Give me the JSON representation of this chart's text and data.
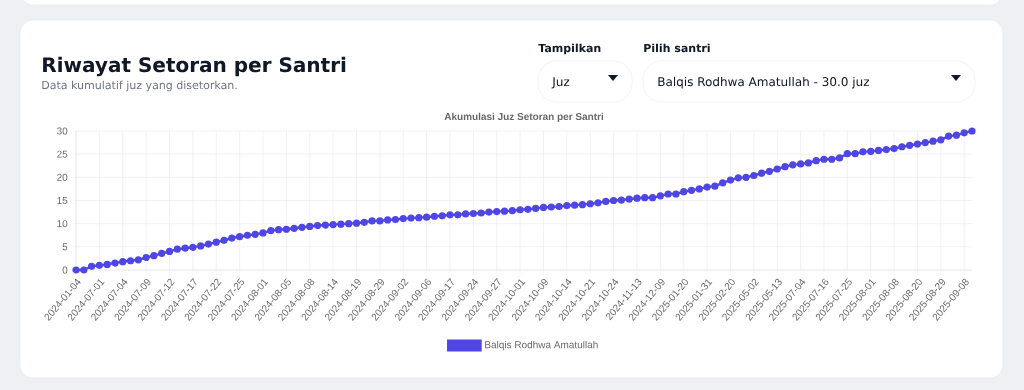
{
  "chart_data": {
    "type": "line",
    "title": "Riwayat Setoran per Santri",
    "subtitle": "Data kumulatif juz yang disetorkan.",
    "annotations": [
      "Akumulasi Juz Setoran per Santri",
      "Tampilkan",
      "Juz",
      "Pilih santri",
      "Balqis Rodhwa Amatullah - 30.0 juz"
    ],
    "categories": [
      "2024-01-04",
      null,
      null,
      "2024-07-01",
      null,
      null,
      "2024-07-04",
      null,
      null,
      "2024-07-09",
      null,
      null,
      "2024-07-12",
      null,
      null,
      "2024-07-17",
      null,
      null,
      "2024-07-22",
      null,
      null,
      "2024-07-25",
      null,
      null,
      "2024-08-01",
      null,
      null,
      "2024-08-05",
      null,
      null,
      "2024-08-08",
      null,
      null,
      "2024-08-14",
      null,
      null,
      "2024-08-19",
      null,
      null,
      "2024-08-29",
      null,
      null,
      "2024-09-02",
      null,
      null,
      "2024-09-06",
      null,
      null,
      "2024-09-17",
      null,
      null,
      "2024-09-24",
      null,
      null,
      "2024-09-27",
      null,
      null,
      "2024-10-01",
      null,
      null,
      "2024-10-09",
      null,
      null,
      "2024-10-14",
      null,
      null,
      "2024-10-21",
      null,
      null,
      "2024-10-24",
      null,
      null,
      "2024-11-13",
      null,
      null,
      "2024-12-09",
      null,
      null,
      "2025-01-20",
      null,
      null,
      "2025-01-31",
      null,
      null,
      "2025-02-20",
      null,
      null,
      "2025-05-02",
      null,
      null,
      "2025-05-13",
      null,
      null,
      "2025-07-04",
      null,
      null,
      "2025-07-16",
      null,
      null,
      "2025-07-25",
      null,
      null,
      "2025-08-01",
      null,
      null,
      "2025-08-08",
      null,
      null,
      "2025-08-20",
      null,
      null,
      "2025-08-29",
      null,
      null,
      "2025-09-08",
      null
    ],
    "series": [
      {
        "name": "Balqis Rodhwa Amatullah",
        "color": "#4f46e5",
        "values": [
          0,
          0,
          0.8,
          1.0,
          1.2,
          1.5,
          1.8,
          2.0,
          2.2,
          2.7,
          3.1,
          3.6,
          4.0,
          4.5,
          4.7,
          4.9,
          5.2,
          5.6,
          6.0,
          6.4,
          6.9,
          7.2,
          7.5,
          7.7,
          8.0,
          8.5,
          8.7,
          8.8,
          9.0,
          9.2,
          9.4,
          9.6,
          9.7,
          9.8,
          9.9,
          10.0,
          10.1,
          10.3,
          10.6,
          10.6,
          10.8,
          10.9,
          11.1,
          11.2,
          11.3,
          11.4,
          11.6,
          11.7,
          11.9,
          11.9,
          12.1,
          12.2,
          12.3,
          12.5,
          12.6,
          12.7,
          12.8,
          13.0,
          13.1,
          13.3,
          13.5,
          13.6,
          13.7,
          13.9,
          14.0,
          14.1,
          14.3,
          14.5,
          14.8,
          15.0,
          15.1,
          15.3,
          15.5,
          15.6,
          15.6,
          16.0,
          16.4,
          16.4,
          16.9,
          17.2,
          17.5,
          17.9,
          18.1,
          18.8,
          19.4,
          19.9,
          20.0,
          20.4,
          20.9,
          21.3,
          21.8,
          22.3,
          22.7,
          22.9,
          23.1,
          23.6,
          23.9,
          23.9,
          24.2,
          25.1,
          25.1,
          25.5,
          25.6,
          25.8,
          26.0,
          26.2,
          26.6,
          26.9,
          27.2,
          27.5,
          27.8,
          28.1,
          28.9,
          29.1,
          29.6,
          30.0
        ]
      }
    ],
    "ylim": [
      0,
      30
    ],
    "yticks": [
      0,
      5,
      10,
      15,
      20,
      25,
      30
    ],
    "grid": true,
    "legend": "bottom",
    "marker": "circle"
  }
}
